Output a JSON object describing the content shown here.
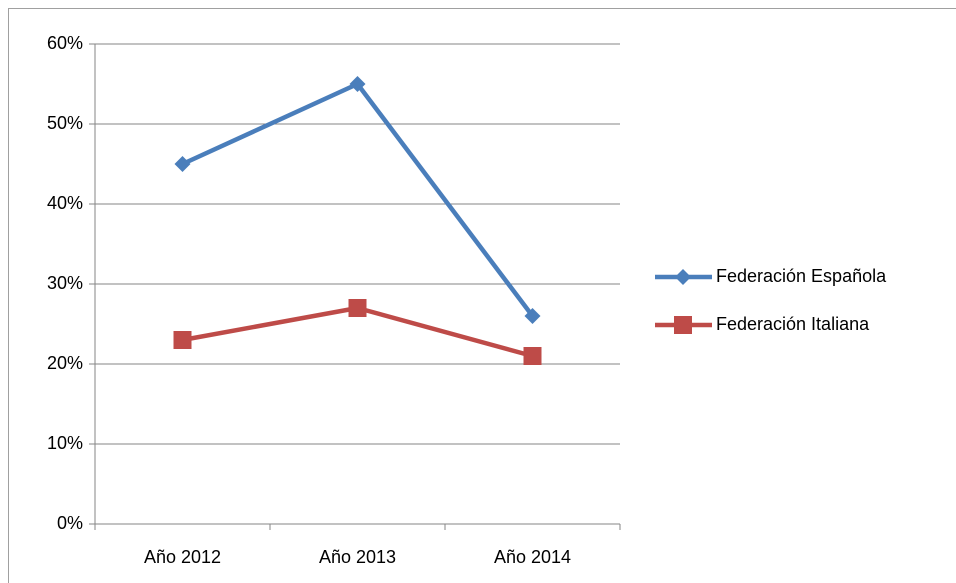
{
  "chart_data": {
    "type": "line",
    "categories": [
      "Año 2012",
      "Año 2013",
      "Año 2014"
    ],
    "series": [
      {
        "name": "Federación Española",
        "color": "#4a7ebb",
        "marker": "diamond",
        "values": [
          45,
          55,
          26
        ]
      },
      {
        "name": "Federación Italiana",
        "color": "#be4b48",
        "marker": "square",
        "values": [
          23,
          27,
          21
        ]
      }
    ],
    "ylim": [
      0,
      60
    ],
    "yticks": [
      {
        "value": 0,
        "label": "0%"
      },
      {
        "value": 10,
        "label": "10%"
      },
      {
        "value": 20,
        "label": "20%"
      },
      {
        "value": 30,
        "label": "30%"
      },
      {
        "value": 40,
        "label": "40%"
      },
      {
        "value": 50,
        "label": "50%"
      },
      {
        "value": 60,
        "label": "60%"
      }
    ],
    "grid": true,
    "legend": "right"
  }
}
